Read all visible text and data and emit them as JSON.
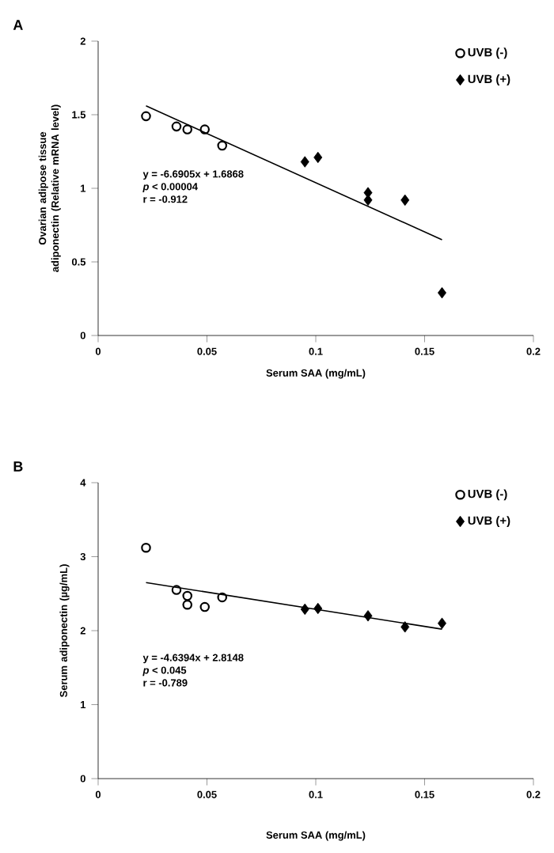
{
  "chart_data": [
    {
      "type": "scatter",
      "title": "A",
      "xlabel": "Serum SAA (mg/mL)",
      "ylabel": "Ovarian adipose tissue adiponectin (Relative mRNA level)",
      "xlim": [
        0,
        0.2
      ],
      "xticks": [
        0,
        0.05,
        0.1,
        0.15,
        0.2
      ],
      "ylim": [
        0,
        2
      ],
      "yticks": [
        0,
        0.5,
        1,
        1.5,
        2
      ],
      "legend": "top right",
      "annotations": [
        "y = -6.6905x + 1.6868",
        "*p* < 0.00004",
        "r = -0.912"
      ],
      "series": [
        {
          "name": "UVB (-)",
          "color": "#000000",
          "marker": "circle",
          "x": [
            0.022,
            0.036,
            0.041,
            0.049,
            0.057
          ],
          "values": [
            1.49,
            1.42,
            1.4,
            1.4,
            1.29
          ]
        },
        {
          "name": "UVB (+)",
          "color": "#000000",
          "marker": "diamond",
          "x": [
            0.095,
            0.101,
            0.124,
            0.124,
            0.141,
            0.158
          ],
          "values": [
            1.18,
            1.21,
            0.97,
            0.92,
            0.92,
            0.29
          ]
        },
        {
          "type": "line",
          "color": "#000000",
          "marker": "none",
          "x": [
            0.022,
            0.158
          ],
          "values": [
            1.56,
            0.65
          ]
        }
      ]
    },
    {
      "type": "scatter",
      "title": "B",
      "xlabel": "Serum SAA (mg/mL)",
      "ylabel": "Serum adiponectin (µg/mL)",
      "xlim": [
        0,
        0.2
      ],
      "xticks": [
        0,
        0.05,
        0.1,
        0.15,
        0.2
      ],
      "ylim": [
        0,
        4
      ],
      "yticks": [
        0,
        1,
        2,
        3,
        4
      ],
      "legend": "top right",
      "annotations": [
        "y = -4.6394x + 2.8148",
        "*p* < 0.045",
        "r = -0.789"
      ],
      "series": [
        {
          "name": "UVB (-)",
          "color": "#000000",
          "marker": "circle",
          "x": [
            0.022,
            0.036,
            0.041,
            0.041,
            0.049,
            0.057
          ],
          "values": [
            3.12,
            2.55,
            2.47,
            2.35,
            2.32,
            2.45
          ]
        },
        {
          "name": "UVB (+)",
          "color": "#000000",
          "marker": "diamond",
          "x": [
            0.095,
            0.101,
            0.124,
            0.141,
            0.158
          ],
          "values": [
            2.29,
            2.3,
            2.2,
            2.05,
            2.1
          ]
        },
        {
          "type": "line",
          "color": "#000000",
          "marker": "none",
          "x": [
            0.022,
            0.158
          ],
          "values": [
            2.65,
            2.02
          ]
        }
      ]
    }
  ]
}
